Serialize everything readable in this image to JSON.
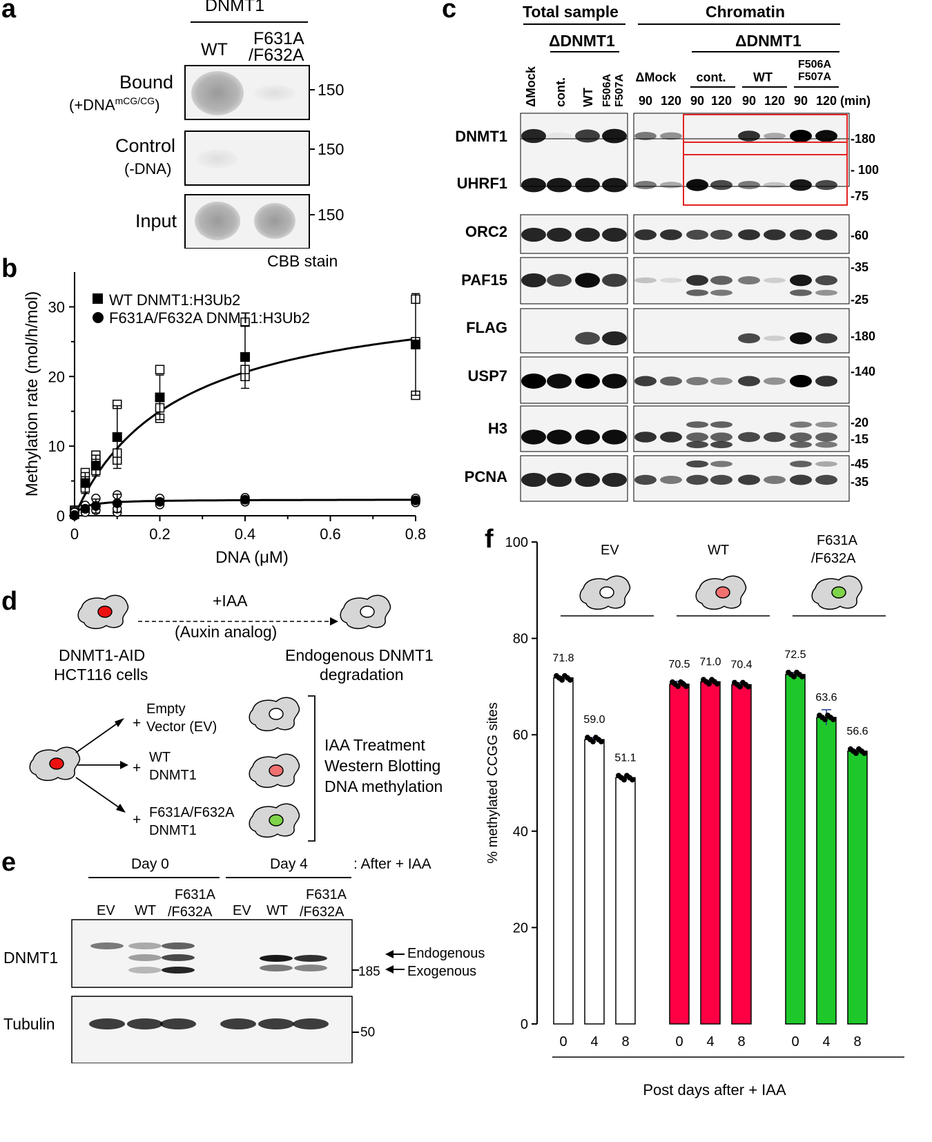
{
  "panels": {
    "a": {
      "letter": "a",
      "header": "DNMT1",
      "columns": [
        "WT",
        "F631A",
        "/F632A"
      ],
      "rows": [
        {
          "label": "Bound",
          "sub_prefix": "(+DNA",
          "sub_sup": "mCG/CG",
          "sub_suffix": ")",
          "marker": "150"
        },
        {
          "label": "Control",
          "sub": "(-DNA)",
          "marker": "150"
        },
        {
          "label": "Input",
          "marker": "150"
        }
      ],
      "stain": "CBB stain"
    },
    "b": {
      "letter": "b",
      "legend": [
        "WT DNMT1:H3Ub2",
        "F631A/F632A DNMT1:H3Ub2"
      ]
    },
    "c": {
      "letter": "c",
      "group_total": "Total sample",
      "group_chromatin": "Chromatin",
      "delta_total": "ΔDNMT1",
      "delta_chromatin": "ΔDNMT1",
      "total_lanes": [
        "ΔMock",
        "cont.",
        "WT",
        "F506A",
        "F507A"
      ],
      "chrom_groups": [
        "ΔMock",
        "cont.",
        "WT",
        "F506A",
        "F507A"
      ],
      "chrom_times": [
        "90",
        "120",
        "90",
        "120",
        "90",
        "120",
        "90",
        "120"
      ],
      "min_label": "(min)",
      "proteins": [
        "DNMT1",
        "UHRF1",
        "ORC2",
        "PAF15",
        "FLAG",
        "USP7",
        "H3",
        "PCNA"
      ],
      "markers": [
        "-180",
        "- 100",
        "-75",
        "-60",
        "-35",
        "-25",
        "-180",
        "-140",
        "-20",
        "-15",
        "-45",
        "-35"
      ]
    },
    "d": {
      "letter": "d",
      "treat": "+IAA",
      "treat_sub": "(Auxin analog)",
      "cell_line": [
        "DNMT1-AID",
        "HCT116 cells"
      ],
      "result": [
        "Endogenous DNMT1",
        "degradation"
      ],
      "arms": [
        {
          "plus": "+",
          "lines": [
            "Empty",
            "Vector (EV)"
          ]
        },
        {
          "plus": "+",
          "lines": [
            "WT",
            "DNMT1"
          ]
        },
        {
          "plus": "+",
          "lines": [
            "F631A/F632A",
            "DNMT1"
          ]
        }
      ],
      "steps": [
        "IAA Treatment",
        "Western Blotting",
        "DNA methylation"
      ]
    },
    "e": {
      "letter": "e",
      "day0": "Day 0",
      "day4": "Day 4",
      "after": ": After + IAA",
      "lanes": [
        "EV",
        "WT",
        "F631A",
        "/F632A",
        "EV",
        "WT",
        "F631A",
        "/F632A"
      ],
      "rows": [
        "DNMT1",
        "Tubulin"
      ],
      "markers": [
        "185",
        "50"
      ],
      "arrows": [
        "Endogenous",
        "Exogenous"
      ]
    },
    "f": {
      "letter": "f",
      "groups": [
        "EV",
        "WT",
        "F631A",
        "/F632A"
      ],
      "xlabel_bottom": "Post days after + IAA"
    }
  },
  "chart_data": [
    {
      "type": "scatter",
      "panel": "b",
      "xlabel": "DNA (μM)",
      "ylabel": "Methylation rate (mol/h/mol)",
      "xlim": [
        0,
        0.8
      ],
      "ylim": [
        0,
        35
      ],
      "xticks": [
        "0",
        "0.2",
        "0.4",
        "0.6",
        "0.8"
      ],
      "yticks": [
        "0",
        "10",
        "20",
        "30"
      ],
      "series": [
        {
          "name": "WT DNMT1:H3Ub2",
          "marker": "square",
          "x": [
            0,
            0.025,
            0.05,
            0.1,
            0.2,
            0.4,
            0.8
          ],
          "mean": [
            0.5,
            4.7,
            7.2,
            11.3,
            17.0,
            22.8,
            24.6
          ],
          "err": [
            0.8,
            1.5,
            1.5,
            4.5,
            3.2,
            4.5,
            7.3
          ],
          "replicates": [
            [
              0.2,
              0.8,
              0.5
            ],
            [
              4.0,
              5.5,
              6.2
            ],
            [
              6.5,
              8.0,
              8.7
            ],
            [
              8.0,
              9.0,
              16.0
            ],
            [
              14.0,
              15.5,
              21.0
            ],
            [
              20.0,
              21.0,
              27.8
            ],
            [
              17.3,
              25.0,
              31.1
            ]
          ]
        },
        {
          "name": "F631A/F632A DNMT1:H3Ub2",
          "marker": "circle",
          "x": [
            0,
            0.025,
            0.05,
            0.1,
            0.2,
            0.4,
            0.8
          ],
          "mean": [
            0.1,
            1.0,
            1.4,
            1.8,
            2.0,
            2.3,
            2.2
          ],
          "err": [
            0.3,
            0.5,
            1.0,
            1.3,
            0.4,
            0.3,
            0.3
          ],
          "replicates": [
            [
              0.0,
              0.3,
              0.5
            ],
            [
              0.5,
              1.0,
              1.5
            ],
            [
              0.8,
              1.5,
              2.5
            ],
            [
              0.5,
              1.0,
              3.0
            ],
            [
              1.6,
              2.2,
              2.5
            ],
            [
              2.0,
              2.3,
              2.6
            ],
            [
              1.9,
              2.2,
              2.5
            ]
          ]
        }
      ],
      "fit": {
        "model": "michaelis-menten",
        "vmax": 33,
        "km": 0.24,
        "vmax2": 2.35,
        "km2": 0.02
      }
    },
    {
      "type": "bar",
      "panel": "f",
      "ylabel": "% methylated CCGG sites",
      "xlabel": "Post days after + IAA",
      "ylim": [
        0,
        100
      ],
      "yticks": [
        "0",
        "20",
        "40",
        "60",
        "80",
        "100"
      ],
      "groups": [
        {
          "name": "EV",
          "color": "#ffffff",
          "cell_nucleus": "#ffffff",
          "days": [
            "0",
            "4",
            "8"
          ],
          "values": [
            71.8,
            59.0,
            51.1
          ],
          "labels": [
            "71.8",
            "59.0",
            "51.1"
          ],
          "err": [
            0.3,
            0.4,
            0.2
          ]
        },
        {
          "name": "WT",
          "color": "#ff0044",
          "cell_nucleus": "#f07070",
          "days": [
            "0",
            "4",
            "8"
          ],
          "values": [
            70.5,
            71.0,
            70.4
          ],
          "labels": [
            "70.5",
            "71.0",
            "70.4"
          ],
          "err": [
            0.6,
            0.3,
            0.4
          ]
        },
        {
          "name": "F631A/F632A",
          "color": "#1ec82a",
          "cell_nucleus": "#7ed34a",
          "days": [
            "0",
            "4",
            "8"
          ],
          "values": [
            72.5,
            63.6,
            56.6
          ],
          "labels": [
            "72.5",
            "63.6",
            "56.6"
          ],
          "err": [
            0.4,
            1.6,
            0.3
          ]
        }
      ]
    }
  ]
}
